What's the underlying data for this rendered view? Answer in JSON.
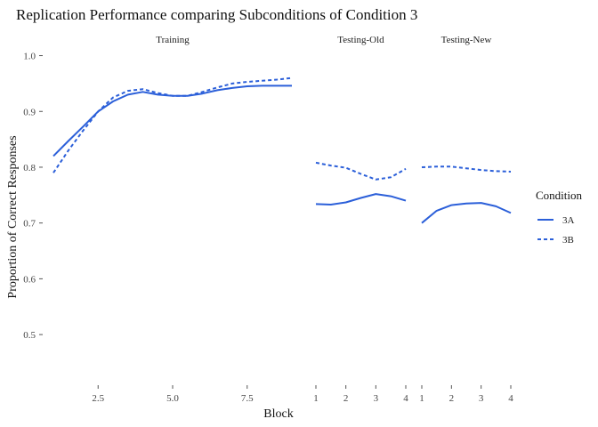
{
  "chart_data": {
    "type": "line",
    "title": "Replication Performance comparing Subconditions of Condition 3",
    "xlabel": "Block",
    "ylabel": "Proportion of Correct Responses",
    "ylim": [
      0.43,
      1.02
    ],
    "yticks": [
      0.5,
      0.6,
      0.7,
      0.8,
      0.9,
      1.0
    ],
    "ytick_labels": [
      "0.5",
      "0.6",
      "0.7",
      "0.8",
      "0.9",
      "1.0"
    ],
    "grid": false,
    "legend": {
      "title": "Condition",
      "placement": "right",
      "entries": [
        {
          "label": "3A",
          "dash": "solid"
        },
        {
          "label": "3B",
          "dash": "dashed"
        }
      ]
    },
    "colors": {
      "line": "#2b5fd9"
    },
    "panels": [
      {
        "strip": "Training",
        "xlim": [
          1,
          9
        ],
        "xticks": [
          2.5,
          5.0,
          7.5
        ],
        "xtick_labels": [
          "2.5",
          "5.0",
          "7.5"
        ],
        "series": [
          {
            "name": "3A",
            "dash": "solid",
            "x": [
              1,
              1.5,
              2,
              2.5,
              3,
              3.5,
              4,
              4.5,
              5,
              5.5,
              6,
              6.5,
              7,
              7.5,
              8,
              8.5,
              9
            ],
            "y": [
              0.82,
              0.847,
              0.873,
              0.9,
              0.918,
              0.93,
              0.935,
              0.93,
              0.928,
              0.928,
              0.932,
              0.938,
              0.942,
              0.945,
              0.946,
              0.946,
              0.946
            ]
          },
          {
            "name": "3B",
            "dash": "dashed",
            "x": [
              1,
              1.5,
              2,
              2.5,
              3,
              3.5,
              4,
              4.5,
              5,
              5.5,
              6,
              6.5,
              7,
              7.5,
              8,
              8.5,
              9
            ],
            "y": [
              0.79,
              0.83,
              0.866,
              0.9,
              0.925,
              0.937,
              0.94,
              0.933,
              0.928,
              0.928,
              0.935,
              0.943,
              0.95,
              0.953,
              0.955,
              0.957,
              0.96
            ]
          }
        ]
      },
      {
        "strip": "Testing-Old",
        "xlim": [
          1,
          4
        ],
        "xticks": [
          1,
          2,
          3,
          4
        ],
        "xtick_labels": [
          "1",
          "2",
          "3",
          "4"
        ],
        "series": [
          {
            "name": "3A",
            "dash": "solid",
            "x": [
              1,
              1.5,
              2,
              2.5,
              3,
              3.5,
              4
            ],
            "y": [
              0.734,
              0.733,
              0.737,
              0.745,
              0.752,
              0.748,
              0.74
            ]
          },
          {
            "name": "3B",
            "dash": "dashed",
            "x": [
              1,
              1.5,
              2,
              2.5,
              3,
              3.5,
              4
            ],
            "y": [
              0.808,
              0.803,
              0.799,
              0.788,
              0.778,
              0.782,
              0.797
            ]
          }
        ]
      },
      {
        "strip": "Testing-New",
        "xlim": [
          1,
          4
        ],
        "xticks": [
          1,
          2,
          3,
          4
        ],
        "xtick_labels": [
          "1",
          "2",
          "3",
          "4"
        ],
        "series": [
          {
            "name": "3A",
            "dash": "solid",
            "x": [
              1,
              1.5,
              2,
              2.5,
              3,
              3.5,
              4
            ],
            "y": [
              0.7,
              0.722,
              0.732,
              0.735,
              0.736,
              0.73,
              0.718
            ]
          },
          {
            "name": "3B",
            "dash": "dashed",
            "x": [
              1,
              1.5,
              2,
              2.5,
              3,
              3.5,
              4
            ],
            "y": [
              0.8,
              0.801,
              0.801,
              0.798,
              0.795,
              0.793,
              0.792
            ]
          }
        ]
      }
    ]
  }
}
